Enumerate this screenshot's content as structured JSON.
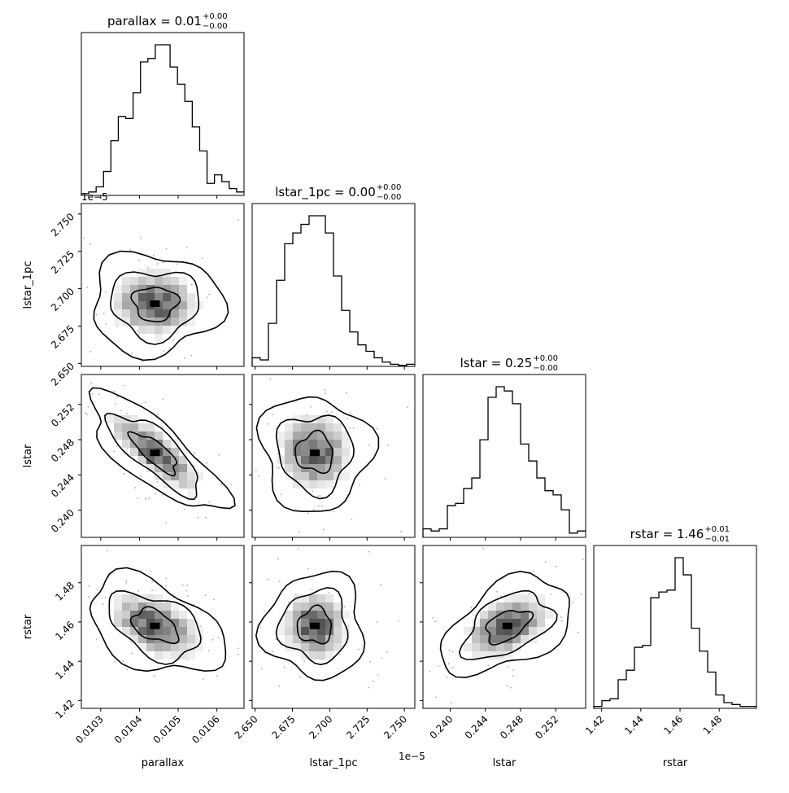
{
  "chart_data": {
    "type": "corner",
    "parameters": [
      {
        "name": "parallax",
        "axis_label": "parallax",
        "title": "parallax = 0.01",
        "title_sup": "+0.00",
        "title_sub": "−0.00",
        "range": [
          0.01025,
          0.01067
        ],
        "ticks": [
          0.0103,
          0.0104,
          0.0105,
          0.0106
        ],
        "tick_labels": [
          "0.0103",
          "0.0104",
          "0.0105",
          "0.0106"
        ],
        "offset_text": ""
      },
      {
        "name": "lstar_1pc",
        "axis_label": "lstar_1pc",
        "title": "lstar_1pc = 0.00",
        "title_sup": "+0.00",
        "title_sub": "−0.00",
        "range": [
          2.648,
          2.757
        ],
        "ticks": [
          2.65,
          2.675,
          2.7,
          2.725,
          2.75
        ],
        "tick_labels": [
          "2.650",
          "2.675",
          "2.700",
          "2.725",
          "2.750"
        ],
        "offset_text": "1e−5"
      },
      {
        "name": "lstar",
        "axis_label": "lstar",
        "title": "lstar = 0.25",
        "title_sup": "+0.00",
        "title_sub": "−0.00",
        "range": [
          0.2369,
          0.2554
        ],
        "ticks": [
          0.24,
          0.244,
          0.248,
          0.252
        ],
        "tick_labels": [
          "0.240",
          "0.244",
          "0.248",
          "0.252"
        ],
        "offset_text": ""
      },
      {
        "name": "rstar",
        "axis_label": "rstar",
        "title": "rstar = 1.46",
        "title_sup": "+0.01",
        "title_sub": "−0.01",
        "range": [
          1.416,
          1.499
        ],
        "ticks": [
          1.42,
          1.44,
          1.46,
          1.48
        ],
        "tick_labels": [
          "1.42",
          "1.44",
          "1.46",
          "1.48"
        ],
        "offset_text": ""
      }
    ],
    "histograms": [
      {
        "parameter": "parallax",
        "counts": [
          1,
          2,
          5,
          14,
          32,
          46,
          45,
          60,
          78,
          80,
          88,
          88,
          75,
          65,
          55,
          40,
          26,
          7,
          12,
          8,
          4,
          2
        ]
      },
      {
        "parameter": "lstar_1pc",
        "counts": [
          4,
          3,
          20,
          40,
          57,
          62,
          66,
          70,
          70,
          62,
          42,
          26,
          16,
          10,
          7,
          4,
          2,
          1,
          0.5,
          1
        ]
      },
      {
        "parameter": "lstar",
        "counts": [
          4,
          3,
          4,
          15,
          16,
          23,
          28,
          46,
          66,
          71,
          69,
          63,
          44,
          36,
          28,
          22,
          20,
          13,
          2,
          3
        ]
      },
      {
        "parameter": "rstar",
        "counts": [
          1,
          4,
          5,
          15,
          20,
          32,
          33,
          58,
          61,
          62,
          79,
          70,
          42,
          30,
          19,
          7,
          3,
          2,
          1,
          1
        ]
      }
    ],
    "pairs": [
      {
        "x": "parallax",
        "y": "lstar_1pc",
        "center": [
          0.01044,
          2.69
        ],
        "spread": [
          6e-05,
          0.012
        ],
        "correlation": 0.0
      },
      {
        "x": "parallax",
        "y": "lstar",
        "center": [
          0.01044,
          0.2465
        ],
        "spread": [
          6e-05,
          0.0025
        ],
        "correlation": -0.88
      },
      {
        "x": "lstar_1pc",
        "y": "lstar",
        "center": [
          2.69,
          0.2465
        ],
        "spread": [
          0.012,
          0.0025
        ],
        "correlation": 0.35
      },
      {
        "x": "parallax",
        "y": "rstar",
        "center": [
          0.01044,
          1.458
        ],
        "spread": [
          6e-05,
          0.0095
        ],
        "correlation": -0.6
      },
      {
        "x": "lstar_1pc",
        "y": "rstar",
        "center": [
          2.69,
          1.458
        ],
        "spread": [
          0.012,
          0.0095
        ],
        "correlation": 0.0
      },
      {
        "x": "lstar",
        "y": "rstar",
        "center": [
          0.2465,
          1.458
        ],
        "spread": [
          0.0025,
          0.0095
        ],
        "correlation": 0.65
      }
    ],
    "contour_levels": [
      "39%",
      "86%",
      "99%"
    ],
    "colors": {
      "ink": "#000000",
      "density_low": "#f2f2f2",
      "density_high": "#555555"
    },
    "grid": false,
    "legend": "none"
  }
}
